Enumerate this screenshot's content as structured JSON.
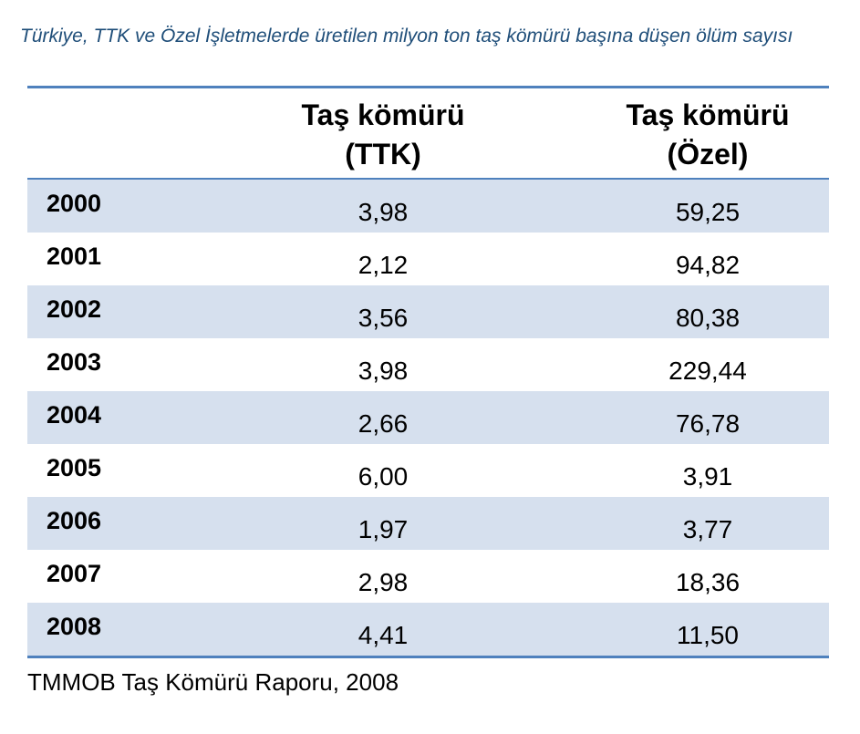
{
  "title": "Türkiye, TTK ve Özel İşletmelerde üretilen milyon ton taş kömürü başına düşen ölüm sayısı",
  "table": {
    "columns": [
      {
        "line1": "Taş kömürü",
        "line2": "(TTK)"
      },
      {
        "line1": "Taş kömürü",
        "line2": "(Özel)"
      }
    ],
    "rows": [
      {
        "year": "2000",
        "ttk": "3,98",
        "ozel": "59,25"
      },
      {
        "year": "2001",
        "ttk": "2,12",
        "ozel": "94,82"
      },
      {
        "year": "2002",
        "ttk": "3,56",
        "ozel": "80,38"
      },
      {
        "year": "2003",
        "ttk": "3,98",
        "ozel": "229,44"
      },
      {
        "year": "2004",
        "ttk": "2,66",
        "ozel": "76,78"
      },
      {
        "year": "2005",
        "ttk": "6,00",
        "ozel": "3,91"
      },
      {
        "year": "2006",
        "ttk": "1,97",
        "ozel": "3,77"
      },
      {
        "year": "2007",
        "ttk": "2,98",
        "ozel": "18,36"
      },
      {
        "year": "2008",
        "ttk": "4,41",
        "ozel": "11,50"
      }
    ]
  },
  "source": "TMMOB Taş Kömürü Raporu, 2008",
  "colors": {
    "title": "#1f4e79",
    "rule": "#4f81bd",
    "row_shade": "#d6e0ee"
  }
}
